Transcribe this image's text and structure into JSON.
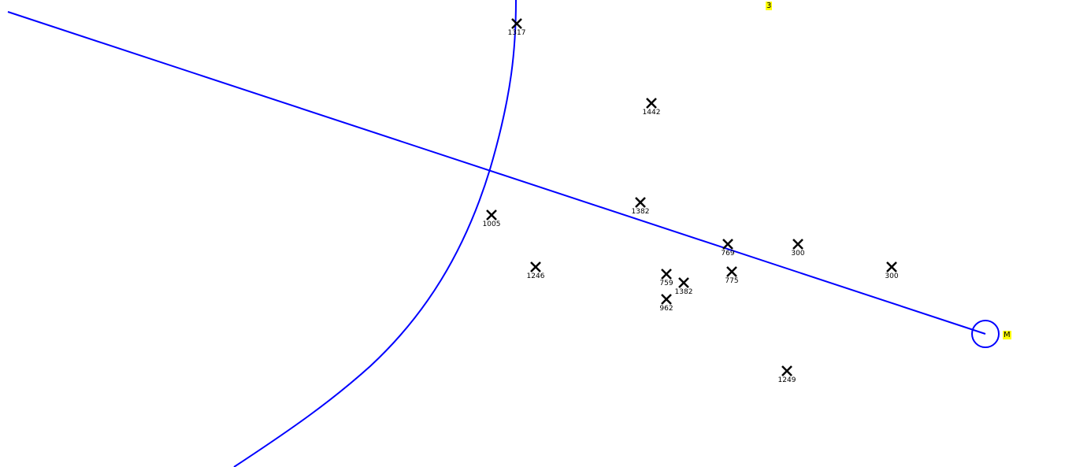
{
  "colors": {
    "line": "#0000ff",
    "marker": "#000000",
    "tag_bg": "#ffff00"
  },
  "tags": {
    "top": "3",
    "end": "M"
  },
  "markers": [
    {
      "label": "1317"
    },
    {
      "label": "1442"
    },
    {
      "label": "1382"
    },
    {
      "label": "1005"
    },
    {
      "label": "1246"
    },
    {
      "label": "769"
    },
    {
      "label": "300"
    },
    {
      "label": "300"
    },
    {
      "label": "759"
    },
    {
      "label": "1382"
    },
    {
      "label": "775"
    },
    {
      "label": "962"
    },
    {
      "label": "1249"
    }
  ]
}
